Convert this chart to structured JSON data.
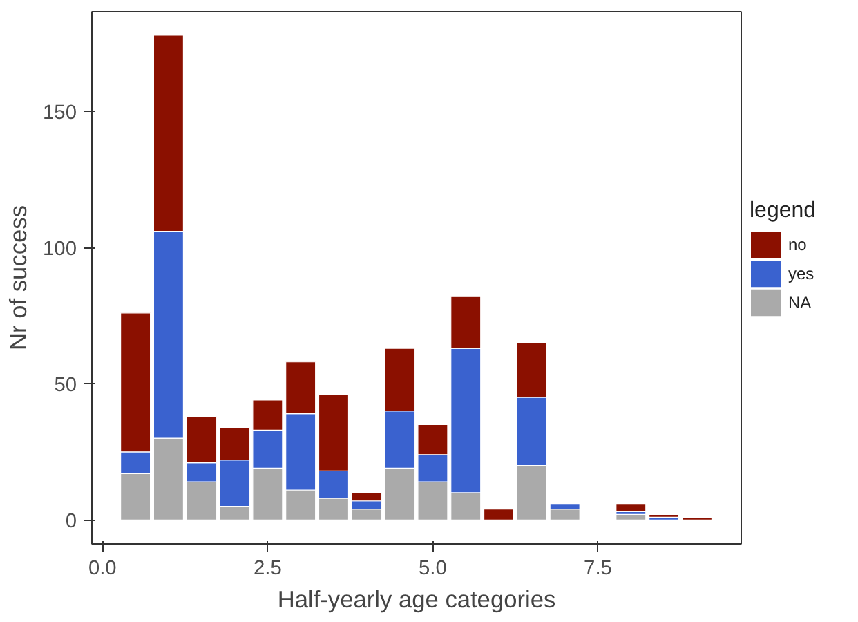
{
  "chart_data": {
    "type": "bar",
    "stacked": true,
    "xlabel": "Half-yearly age categories",
    "ylabel": "Nr of success",
    "legend_title": "legend",
    "legend": "right",
    "grid": false,
    "x": [
      0.5,
      1.0,
      1.5,
      2.0,
      2.5,
      3.0,
      3.5,
      4.0,
      4.5,
      5.0,
      5.5,
      6.0,
      6.5,
      7.0,
      8.0,
      8.5,
      9.0
    ],
    "series": [
      {
        "name": "NA",
        "color": "#aaaaaa",
        "values": [
          17,
          30,
          14,
          5,
          19,
          11,
          8,
          4,
          19,
          14,
          10,
          null,
          20,
          4,
          2,
          null,
          null
        ]
      },
      {
        "name": "yes",
        "color": "#3a62cf",
        "values": [
          8,
          76,
          7,
          17,
          14,
          28,
          10,
          3,
          21,
          10,
          53,
          null,
          25,
          2,
          1,
          1,
          null
        ]
      },
      {
        "name": "no",
        "color": "#8b1000",
        "values": [
          51,
          72,
          17,
          12,
          11,
          19,
          28,
          3,
          23,
          11,
          19,
          4,
          20,
          null,
          3,
          1,
          1
        ]
      }
    ],
    "xlim": [
      -0.16,
      9.67
    ],
    "ylim": [
      -8.8,
      186.6
    ],
    "xticks": [
      {
        "value": 0,
        "label": "0.0"
      },
      {
        "value": 2.5,
        "label": "2.5"
      },
      {
        "value": 5,
        "label": "5.0"
      },
      {
        "value": 7.5,
        "label": "7.5"
      }
    ],
    "yticks": [
      0,
      50,
      100,
      150
    ]
  }
}
